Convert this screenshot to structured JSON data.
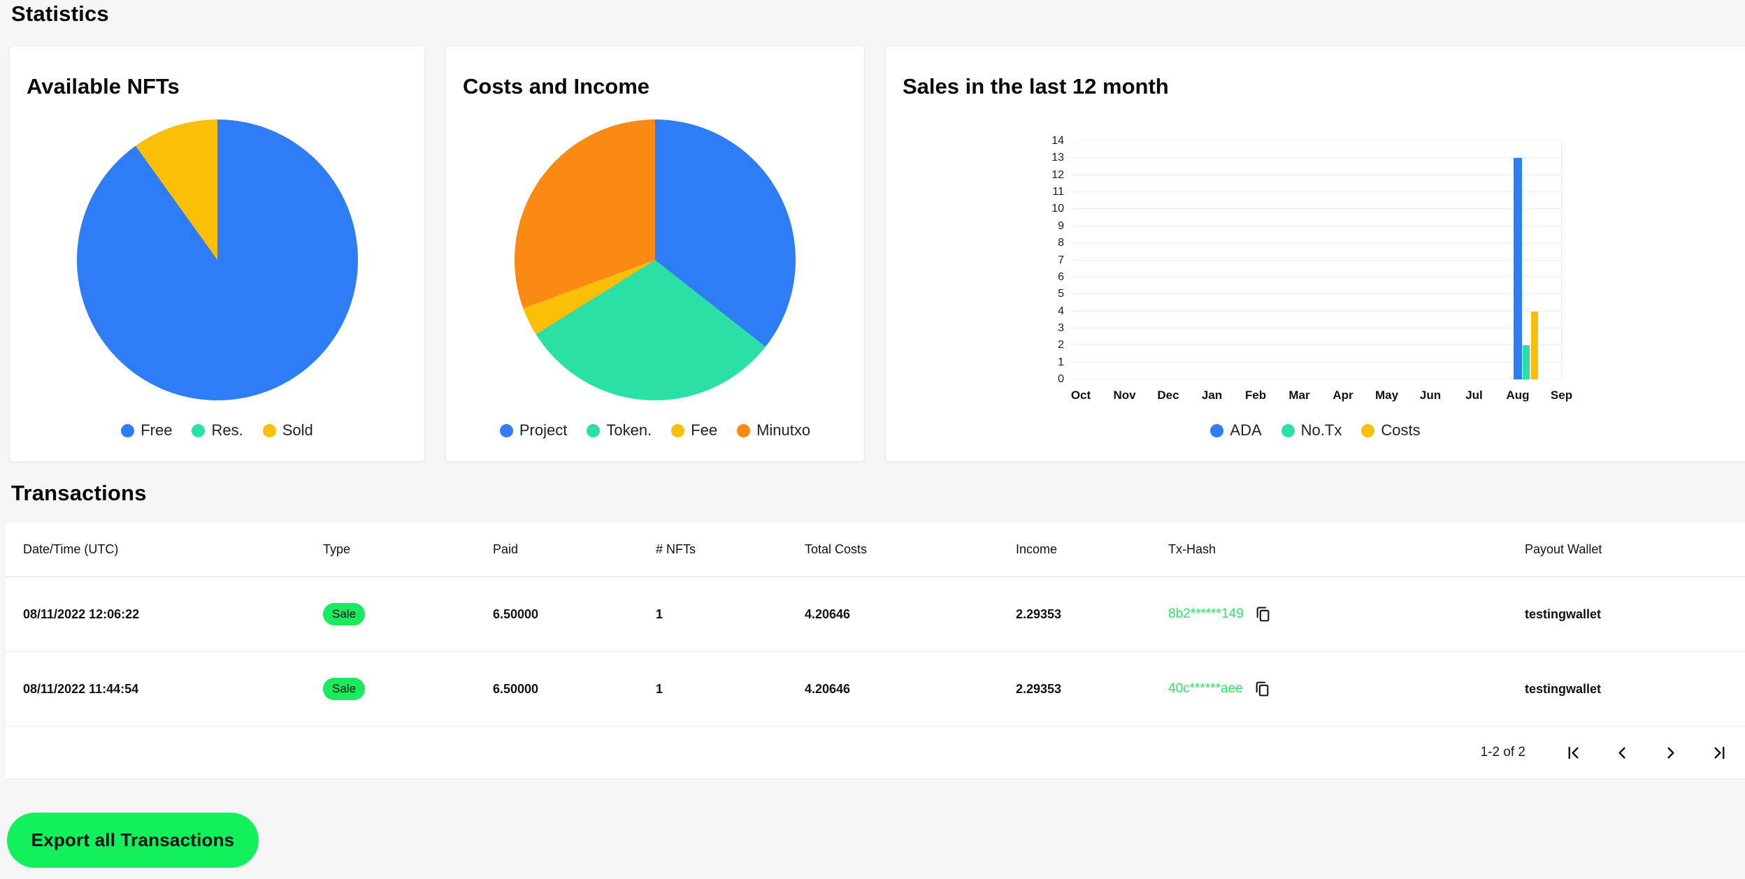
{
  "page_heading": "Statistics",
  "colors": {
    "accent_blue": "#2e7cf6",
    "accent_teal": "#2be0a7",
    "accent_yellow": "#fbbf08",
    "accent_orange": "#fa8a12",
    "badge_green": "#1de95f",
    "link_green": "#2de467",
    "button_green": "#12f05c"
  },
  "chart_data": [
    {
      "type": "pie",
      "title": "Available NFTs",
      "legend_position": "bottom",
      "slices": [
        {
          "label": "Free",
          "percent": 90.1,
          "color": "#2e7cf6"
        },
        {
          "label": "Res.",
          "percent": 0,
          "color": "#2be0a7"
        },
        {
          "label": "Sold",
          "percent": 9.9,
          "color": "#fbbf08"
        }
      ]
    },
    {
      "type": "pie",
      "title": "Costs and Income",
      "legend_position": "bottom",
      "slices": [
        {
          "label": "Project",
          "percent": 35.6,
          "color": "#2e7cf6"
        },
        {
          "label": "Token.",
          "percent": 30.5,
          "color": "#2be0a7"
        },
        {
          "label": "Fee",
          "percent": 3.3,
          "color": "#fbbf08"
        },
        {
          "label": "Minutxo",
          "percent": 30.6,
          "color": "#fa8a12"
        }
      ]
    },
    {
      "type": "bar",
      "title": "Sales in the last 12 month",
      "categories": [
        "Oct",
        "Nov",
        "Dec",
        "Jan",
        "Feb",
        "Mar",
        "Apr",
        "May",
        "Jun",
        "Jul",
        "Aug",
        "Sep"
      ],
      "series": [
        {
          "name": "ADA",
          "color": "#2e7cf6",
          "values": [
            0,
            0,
            0,
            0,
            0,
            0,
            0,
            0,
            0,
            0,
            13,
            0
          ]
        },
        {
          "name": "No.Tx",
          "color": "#2be0a7",
          "values": [
            0,
            0,
            0,
            0,
            0,
            0,
            0,
            0,
            0,
            0,
            2,
            0
          ]
        },
        {
          "name": "Costs",
          "color": "#fbbf08",
          "values": [
            0,
            0,
            0,
            0,
            0,
            0,
            0,
            0,
            0,
            0,
            4,
            0
          ]
        }
      ],
      "ylim": [
        0,
        14
      ],
      "ytick_step": 1,
      "grid": true,
      "legend_position": "bottom"
    }
  ],
  "transactions": {
    "heading": "Transactions",
    "columns": [
      "Date/Time (UTC)",
      "Type",
      "Paid",
      "# NFTs",
      "Total Costs",
      "Income",
      "Tx-Hash",
      "Payout Wallet"
    ],
    "rows": [
      {
        "datetime": "08/11/2022 12:06:22",
        "type": "Sale",
        "paid": "6.50000",
        "nfts": "1",
        "total_costs": "4.20646",
        "income": "2.29353",
        "tx_hash": "8b2******149",
        "payout_wallet": "testingwallet"
      },
      {
        "datetime": "08/11/2022 11:44:54",
        "type": "Sale",
        "paid": "6.50000",
        "nfts": "1",
        "total_costs": "4.20646",
        "income": "2.29353",
        "tx_hash": "40c******aee",
        "payout_wallet": "testingwallet"
      }
    ],
    "pagination": {
      "label": "1-2 of 2"
    }
  },
  "export_button": {
    "label": "Export all Transactions"
  }
}
